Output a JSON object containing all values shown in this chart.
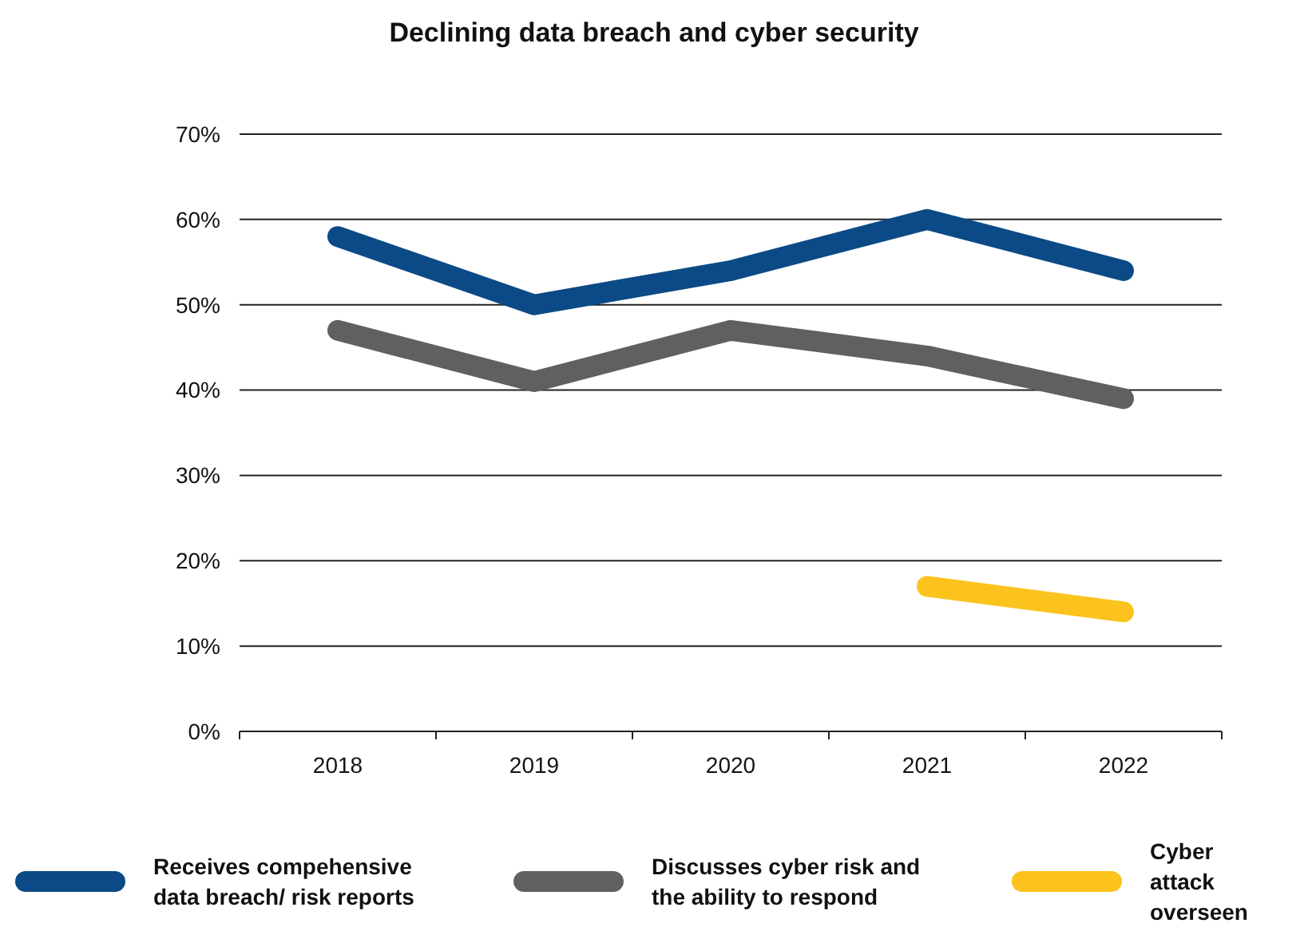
{
  "chart_data": {
    "type": "line",
    "title": "Declining data breach and cyber security",
    "categories": [
      "2018",
      "2019",
      "2020",
      "2021",
      "2022"
    ],
    "series": [
      {
        "name": "Receives compehensive data breach/ risk reports",
        "color": "#0b4a86",
        "values": [
          58,
          50,
          54,
          60,
          54
        ]
      },
      {
        "name": "Discusses cyber risk and the ability to respond",
        "color": "#5f6062",
        "values": [
          47,
          41,
          47,
          44,
          39
        ]
      },
      {
        "name": "Cyber attack overseen",
        "color": "#fcc31e",
        "values": [
          null,
          null,
          null,
          17,
          14
        ]
      }
    ],
    "ylim": [
      0,
      70
    ],
    "yticks": [
      {
        "value": 0,
        "label": "0%"
      },
      {
        "value": 10,
        "label": "10%"
      },
      {
        "value": 20,
        "label": "20%"
      },
      {
        "value": 30,
        "label": "30%"
      },
      {
        "value": 40,
        "label": "40%"
      },
      {
        "value": 50,
        "label": "50%"
      },
      {
        "value": 60,
        "label": "60%"
      },
      {
        "value": 70,
        "label": "70%"
      }
    ],
    "grid": "y",
    "legend": "bottom",
    "marker": "none",
    "line_style": "solid"
  }
}
